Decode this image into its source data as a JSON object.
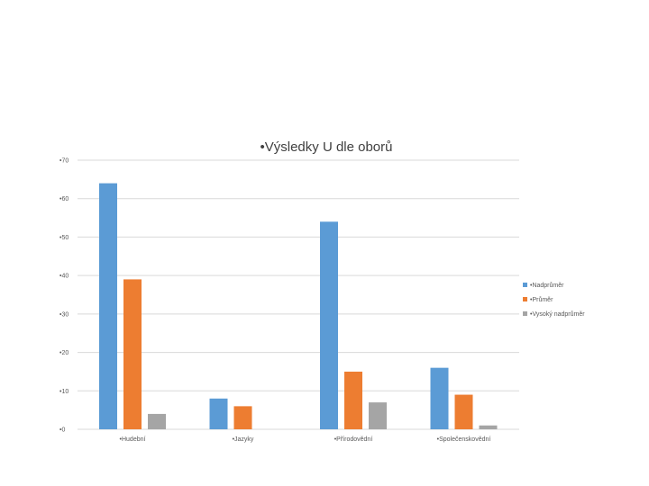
{
  "chart_data": {
    "type": "bar",
    "title": "•Výsledky U dle oborů",
    "categories": [
      "•Hudební",
      "•Jazyky",
      "•Přírodovědní",
      "•Společenskovědní"
    ],
    "series": [
      {
        "name": "•Nadprůměr",
        "values": [
          64,
          8,
          54,
          16
        ],
        "color": "#5b9bd5"
      },
      {
        "name": "•Průměr",
        "values": [
          39,
          6,
          15,
          9
        ],
        "color": "#ed7d31"
      },
      {
        "name": "•Vysoký nadprůměr",
        "values": [
          4,
          0,
          7,
          1
        ],
        "color": "#a5a5a5"
      }
    ],
    "yticks": [
      "•0",
      "•10",
      "•20",
      "•30",
      "•40",
      "•50",
      "•60",
      "•70"
    ],
    "ylim": [
      0,
      70
    ],
    "xlabel": "",
    "ylabel": "",
    "grid": true,
    "legend_position": "right"
  }
}
